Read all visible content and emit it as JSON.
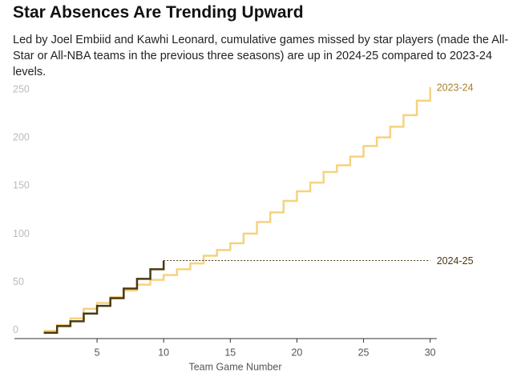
{
  "chart_data": {
    "type": "line",
    "step": true,
    "title": "Star Absences Are Trending Upward",
    "subtitle": "Led by Joel Embiid and Kawhi Leonard, cumulative games missed by star players (made the All-Star or All-NBA teams in the previous three seasons) are up in 2024-25 compared to 2023-24 levels.",
    "x_label": "Team Game Number",
    "x": [
      1,
      2,
      3,
      4,
      5,
      6,
      7,
      8,
      9,
      10,
      11,
      12,
      13,
      14,
      15,
      16,
      17,
      18,
      19,
      20,
      21,
      22,
      23,
      24,
      25,
      26,
      27,
      28,
      29,
      30
    ],
    "series": [
      {
        "name": "2023-24",
        "color": "#f6d27f",
        "label_color": "#a6822a",
        "values": [
          2,
          8,
          15,
          25,
          31,
          37,
          44,
          50,
          55,
          60,
          66,
          72,
          80,
          86,
          93,
          103,
          115,
          125,
          137,
          147,
          156,
          167,
          174,
          183,
          194,
          203,
          214,
          226,
          241,
          255
        ]
      },
      {
        "name": "2024-25",
        "color": "#4a3a10",
        "label_color": "#4a3a10",
        "values": [
          0,
          7,
          12,
          20,
          28,
          36,
          46,
          56,
          66,
          75,
          null,
          null,
          null,
          null,
          null,
          null,
          null,
          null,
          null,
          null,
          null,
          null,
          null,
          null,
          null,
          null,
          null,
          null,
          null,
          null
        ]
      }
    ],
    "xlim": [
      -1.2,
      30.5
    ],
    "ylim": [
      -6,
      260
    ],
    "xticks": [
      5,
      10,
      15,
      20,
      25,
      30
    ],
    "yticks": [
      0,
      50,
      100,
      150,
      200,
      250
    ]
  }
}
